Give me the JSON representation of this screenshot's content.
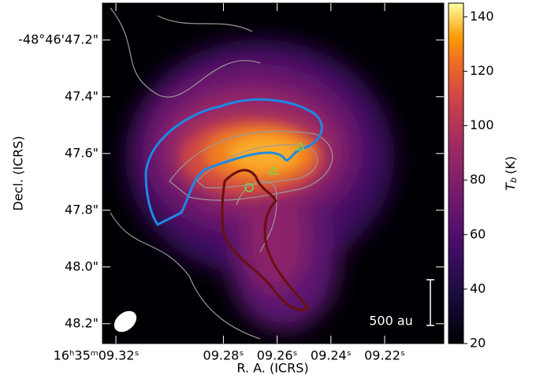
{
  "chart_data": {
    "type": "image",
    "xlabel": "R. A. (ICRS)",
    "ylabel": "Decl. (ICRS)",
    "xlim": [
      9.325,
      9.198
    ],
    "xticks": [
      {
        "value": 9.32,
        "label": "16ʰ35ᵐ09.32ˢ"
      },
      {
        "value": 9.28,
        "label": "09.28ˢ"
      },
      {
        "value": 9.26,
        "label": "09.26ˢ"
      },
      {
        "value": 9.24,
        "label": "09.24ˢ"
      },
      {
        "value": 9.22,
        "label": "09.22ˢ"
      }
    ],
    "ylim": [
      48.27,
      47.07
    ],
    "yticks": [
      {
        "value": 47.2,
        "label": "-48°46'47.2\""
      },
      {
        "value": 47.4,
        "label": "47.4\""
      },
      {
        "value": 47.6,
        "label": "47.6\""
      },
      {
        "value": 47.8,
        "label": "47.8\""
      },
      {
        "value": 48.0,
        "label": "48.0\""
      },
      {
        "value": 48.2,
        "label": "48.2\""
      }
    ],
    "colormap": "inferno",
    "clim": [
      20,
      145
    ],
    "cticks": [
      20,
      40,
      60,
      80,
      100,
      120,
      140
    ],
    "colorbar_label": {
      "symbol": "T",
      "subscript": "b",
      "unit": "(K)"
    },
    "scalebar_label": "500 au"
  }
}
